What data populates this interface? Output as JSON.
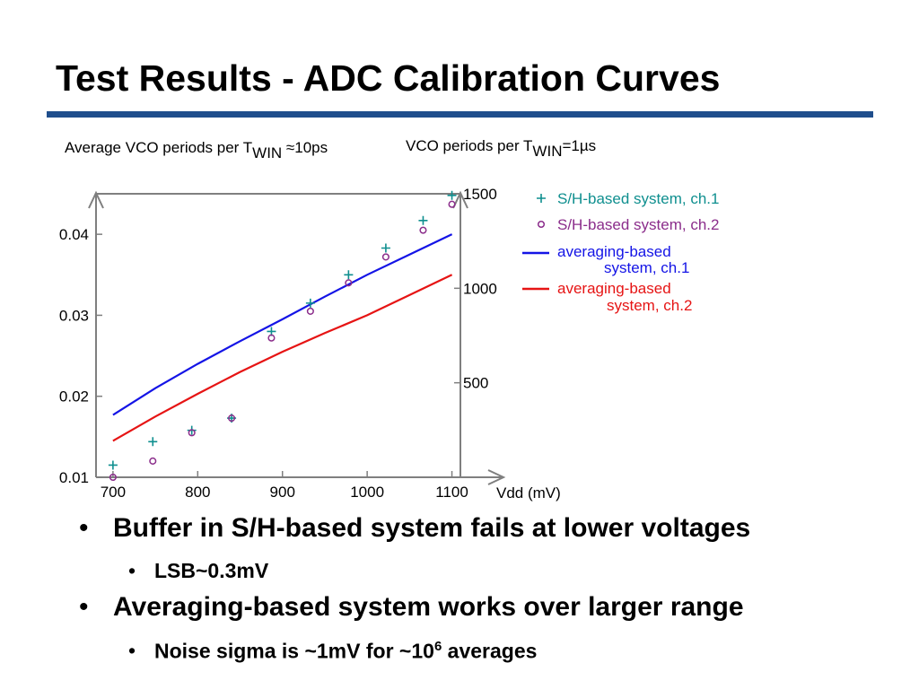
{
  "slide": {
    "title": "Test Results - ADC Calibration Curves",
    "bullets": [
      {
        "level": 1,
        "text": "Buffer in S/H-based system fails at lower voltages"
      },
      {
        "level": 2,
        "text": "LSB~0.3mV"
      },
      {
        "level": 1,
        "text": "Averaging-based system works over larger range"
      },
      {
        "level": 2,
        "text_before": "Noise sigma is ~1mV for ~10",
        "sup": "6",
        "text_after": " averages"
      }
    ],
    "colors": {
      "title_rule": "#1f4e8c"
    }
  },
  "chart_data": {
    "type": "line",
    "left_axis_title": {
      "main": "Average VCO periods per T",
      "sub": "WIN",
      "suffix": " ≈10ps"
    },
    "right_axis_title": {
      "main": "VCO periods per T",
      "sub": "WIN",
      "suffix": "=1µs"
    },
    "xlabel": "Vdd (mV)",
    "xlim": [
      680,
      1110
    ],
    "ylim": [
      0.01,
      0.045
    ],
    "y2lim": [
      0,
      1500
    ],
    "xticks": [
      "700",
      "800",
      "900",
      "1000",
      "1100"
    ],
    "yticks": [
      "0.01",
      "0.02",
      "0.03",
      "0.04"
    ],
    "y2ticks": [
      "500",
      "1000",
      "1500"
    ],
    "series": [
      {
        "name": "S/H-based system, ch.1",
        "kind": "scatter",
        "marker": "plus",
        "color": "#0f8f8f",
        "points": [
          [
            700,
            0.0115
          ],
          [
            747,
            0.0144
          ],
          [
            793,
            0.0158
          ],
          [
            840,
            0.0173
          ],
          [
            887,
            0.028
          ],
          [
            933,
            0.0315
          ],
          [
            978,
            0.035
          ],
          [
            1022,
            0.0383
          ],
          [
            1066,
            0.0417
          ],
          [
            1100,
            0.0448
          ]
        ]
      },
      {
        "name": "S/H-based system, ch.2",
        "kind": "scatter",
        "marker": "circle",
        "color": "#8b2d8b",
        "points": [
          [
            700,
            0.01
          ],
          [
            747,
            0.012
          ],
          [
            793,
            0.0155
          ],
          [
            840,
            0.0173
          ],
          [
            887,
            0.0272
          ],
          [
            933,
            0.0305
          ],
          [
            978,
            0.034
          ],
          [
            1022,
            0.0372
          ],
          [
            1066,
            0.0405
          ],
          [
            1100,
            0.0437
          ]
        ]
      },
      {
        "name_lines": [
          "averaging-based",
          "system, ch.1"
        ],
        "kind": "line",
        "color": "#1414e6",
        "points": [
          [
            700,
            0.0177
          ],
          [
            750,
            0.021
          ],
          [
            800,
            0.024
          ],
          [
            850,
            0.0268
          ],
          [
            900,
            0.0295
          ],
          [
            950,
            0.0323
          ],
          [
            1000,
            0.035
          ],
          [
            1050,
            0.0375
          ],
          [
            1100,
            0.04
          ]
        ]
      },
      {
        "name_lines": [
          "averaging-based",
          "system, ch.2"
        ],
        "kind": "line",
        "color": "#e61414",
        "points": [
          [
            700,
            0.0145
          ],
          [
            750,
            0.0175
          ],
          [
            800,
            0.0203
          ],
          [
            850,
            0.023
          ],
          [
            900,
            0.0255
          ],
          [
            950,
            0.0278
          ],
          [
            1000,
            0.03
          ],
          [
            1050,
            0.0325
          ],
          [
            1100,
            0.035
          ]
        ]
      }
    ],
    "axis_color": "#7f7f7f"
  }
}
